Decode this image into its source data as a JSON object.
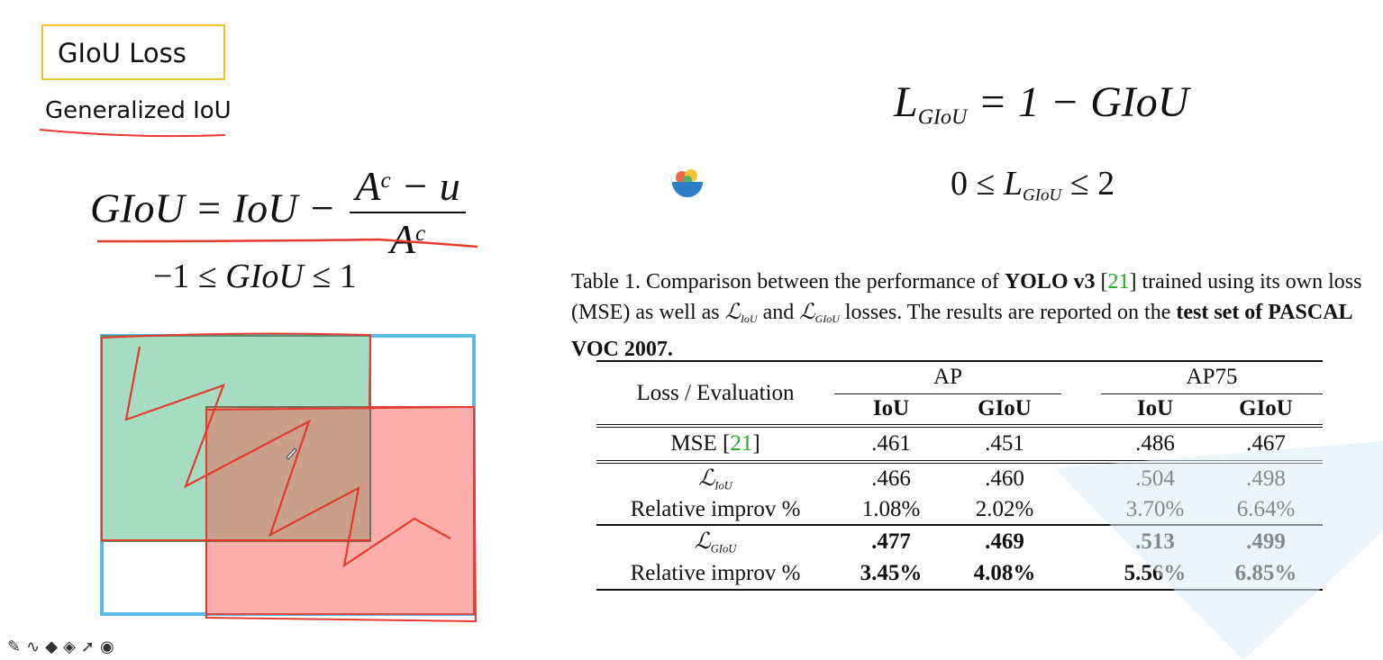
{
  "header": {
    "title": "GIoU Loss",
    "subtitle": "Generalized IoU"
  },
  "formula_giou": {
    "lhs": "GIoU = IoU −",
    "numerator_base": "A",
    "numerator_sup": "c",
    "numerator_rest": " − u",
    "denominator_base": "A",
    "denominator_sup": "c"
  },
  "range_giou": {
    "left": "−1 ≤ ",
    "mid": "GIoU",
    "right": " ≤ 1"
  },
  "formula_loss": {
    "base": "L",
    "sub": "GIoU",
    "rest": " = 1 − GIoU"
  },
  "range_loss": {
    "left": "0 ≤ ",
    "base": "L",
    "sub": "GIoU",
    "right": " ≤ 2"
  },
  "caption": {
    "p1": "Table 1. Comparison between the performance of ",
    "b1": "YOLO v3",
    "p2": " [",
    "cite": "21",
    "p3": "] trained using its own loss (MSE) as well as ",
    "l1": "ℒ",
    "l1sub": "IoU",
    "p4": " and ",
    "l2": "ℒ",
    "l2sub": "GIoU",
    "p5": " losses. The results are reported on the ",
    "b2": "test set of PASCAL VOC 2007."
  },
  "table": {
    "corner": "Loss / Evaluation",
    "group1": "AP",
    "group2": "AP75",
    "sub1": "IoU",
    "sub2": "GIoU",
    "sub3": "IoU",
    "sub4": "GIoU",
    "mse_label": "MSE [",
    "mse_cite": "21",
    "mse_close": "]",
    "mse": [
      ".461",
      ".451",
      ".486",
      ".467"
    ],
    "liou_symbol": "ℒ",
    "liou_sub": "IoU",
    "liou": [
      ".466",
      ".460",
      ".504",
      ".498"
    ],
    "rel_label": "Relative improv %",
    "liou_rel": [
      "1.08%",
      "2.02%",
      "3.70%",
      "6.64%"
    ],
    "lgiou_symbol": "ℒ",
    "lgiou_sub": "GIoU",
    "lgiou": [
      ".477",
      ".469",
      ".513",
      ".499"
    ],
    "lgiou_rel": [
      "3.45%",
      "4.08%",
      "5.56%",
      "6.85%"
    ]
  },
  "colors": {
    "box_a_fill": "#a6dcc2",
    "overlap_fill": "#c9a08a",
    "box_b_fill": "#fcaeaa",
    "enclosing_stroke": "#5bbbe6",
    "ink": "#e53a2e",
    "title_border": "#f2c230"
  },
  "toolbar": {
    "icons": [
      "pen-icon",
      "curve-icon",
      "highlighter-icon",
      "eraser-icon",
      "pointer-icon",
      "target-icon"
    ]
  }
}
